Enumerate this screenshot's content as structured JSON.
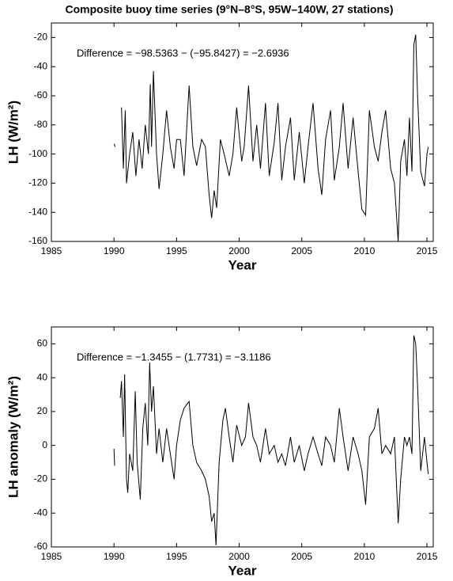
{
  "chart_data": [
    {
      "type": "line",
      "title": "Composite buoy time series (9°N–8°S, 95W–140W, 27 stations)",
      "xlabel": "Year",
      "ylabel": "LH (W/m²)",
      "annotation": "Difference = −98.5363 − (−95.8427) = −2.6936",
      "xlim": [
        1985,
        2015.5
      ],
      "xticks": [
        1985,
        1990,
        1995,
        2000,
        2005,
        2010,
        2015
      ],
      "ylim": [
        -160,
        -10
      ],
      "yticks": [
        -160,
        -140,
        -120,
        -100,
        -80,
        -60,
        -40,
        -20
      ],
      "color": "#000000",
      "x": [
        1990.0,
        1990.1,
        1990.3,
        1990.6,
        1990.75,
        1990.9,
        1991.0,
        1991.25,
        1991.5,
        1991.75,
        1992.0,
        1992.25,
        1992.5,
        1992.75,
        1992.9,
        1993.0,
        1993.15,
        1993.4,
        1993.6,
        1993.9,
        1994.2,
        1994.5,
        1994.8,
        1995.0,
        1995.3,
        1995.6,
        1996.0,
        1996.3,
        1996.6,
        1997.0,
        1997.3,
        1997.6,
        1997.8,
        1998.0,
        1998.2,
        1998.5,
        1998.8,
        1999.2,
        1999.5,
        1999.8,
        2000.2,
        2000.4,
        2000.75,
        2001.1,
        2001.4,
        2001.7,
        2002.1,
        2002.4,
        2002.8,
        2003.1,
        2003.4,
        2003.7,
        2004.1,
        2004.4,
        2004.8,
        2005.2,
        2005.5,
        2005.9,
        2006.3,
        2006.6,
        2006.9,
        2007.3,
        2007.6,
        2008.0,
        2008.3,
        2008.7,
        2009.1,
        2009.5,
        2009.8,
        2010.1,
        2010.4,
        2010.8,
        2011.1,
        2011.4,
        2011.7,
        2012.1,
        2012.4,
        2012.7,
        2012.9,
        2013.2,
        2013.4,
        2013.6,
        2013.8,
        2013.95,
        2014.1,
        2014.25,
        2014.5,
        2014.8,
        2015.0,
        2015.1
      ],
      "values": [
        -93,
        -95,
        null,
        -68,
        -110,
        -70,
        -120,
        -100,
        -85,
        -115,
        -90,
        -110,
        -80,
        -100,
        -52,
        -95,
        -43,
        -100,
        -124,
        -100,
        -70,
        -95,
        -110,
        -90,
        -90,
        -115,
        -53,
        -95,
        -108,
        -90,
        -95,
        -128,
        -144,
        -125,
        -137,
        -90,
        -100,
        -115,
        -100,
        -68,
        -105,
        -95,
        -53,
        -105,
        -80,
        -110,
        -65,
        -115,
        -92,
        -65,
        -118,
        -95,
        -75,
        -118,
        -85,
        -120,
        -95,
        -65,
        -110,
        -128,
        -90,
        -70,
        -118,
        -95,
        -65,
        -110,
        -75,
        -112,
        -138,
        -142,
        -70,
        -95,
        -105,
        -85,
        -70,
        -110,
        -120,
        -160,
        -105,
        -90,
        -115,
        -75,
        -112,
        -25,
        -18,
        -60,
        -112,
        -122,
        -100,
        -95
      ]
    },
    {
      "type": "line",
      "xlabel": "Year",
      "ylabel": "LH anomaly (W/m²)",
      "annotation": "Difference = −1.3455 − (1.7731) = −3.1186",
      "xlim": [
        1985,
        2015.5
      ],
      "xticks": [
        1985,
        1990,
        1995,
        2000,
        2005,
        2010,
        2015
      ],
      "ylim": [
        -60,
        70
      ],
      "yticks": [
        -60,
        -40,
        -20,
        0,
        20,
        40,
        60
      ],
      "color": "#000000",
      "x": [
        1990.0,
        1990.05,
        1990.3,
        1990.5,
        1990.6,
        1990.75,
        1990.85,
        1991.0,
        1991.1,
        1991.25,
        1991.5,
        1991.7,
        1991.85,
        1992.1,
        1992.3,
        1992.5,
        1992.7,
        1992.85,
        1993.0,
        1993.15,
        1993.4,
        1993.6,
        1993.9,
        1994.2,
        1994.5,
        1994.8,
        1995.0,
        1995.3,
        1995.6,
        1996.0,
        1996.3,
        1996.6,
        1997.0,
        1997.3,
        1997.6,
        1997.8,
        1998.0,
        1998.15,
        1998.4,
        1998.7,
        1998.9,
        1999.2,
        1999.5,
        1999.8,
        2000.2,
        2000.5,
        2000.75,
        2001.1,
        2001.4,
        2001.7,
        2002.1,
        2002.4,
        2002.8,
        2003.1,
        2003.4,
        2003.7,
        2004.1,
        2004.4,
        2004.8,
        2005.2,
        2005.5,
        2005.9,
        2006.3,
        2006.6,
        2006.9,
        2007.3,
        2007.6,
        2008.0,
        2008.3,
        2008.7,
        2009.1,
        2009.5,
        2009.8,
        2010.1,
        2010.4,
        2010.8,
        2011.1,
        2011.4,
        2011.7,
        2012.1,
        2012.4,
        2012.7,
        2012.9,
        2013.2,
        2013.4,
        2013.6,
        2013.8,
        2013.95,
        2014.1,
        2014.25,
        2014.5,
        2014.8,
        2015.0,
        2015.1
      ],
      "values": [
        -2,
        -12,
        null,
        28,
        38,
        5,
        42,
        -20,
        -28,
        -5,
        -15,
        32,
        -10,
        -32,
        10,
        25,
        0,
        49,
        20,
        35,
        -5,
        10,
        -10,
        10,
        -5,
        -20,
        0,
        15,
        22,
        26,
        0,
        -10,
        -15,
        -20,
        -30,
        -45,
        -40,
        -59,
        -10,
        15,
        22,
        5,
        -10,
        12,
        0,
        5,
        25,
        5,
        0,
        -10,
        10,
        -5,
        0,
        -10,
        -5,
        -12,
        5,
        -10,
        0,
        -15,
        -5,
        5,
        -5,
        -12,
        5,
        0,
        -10,
        22,
        5,
        -15,
        5,
        -5,
        -15,
        -35,
        5,
        10,
        22,
        -5,
        0,
        -5,
        5,
        -46,
        -20,
        5,
        0,
        5,
        -5,
        65,
        60,
        35,
        -15,
        5,
        -10,
        -17
      ]
    }
  ]
}
